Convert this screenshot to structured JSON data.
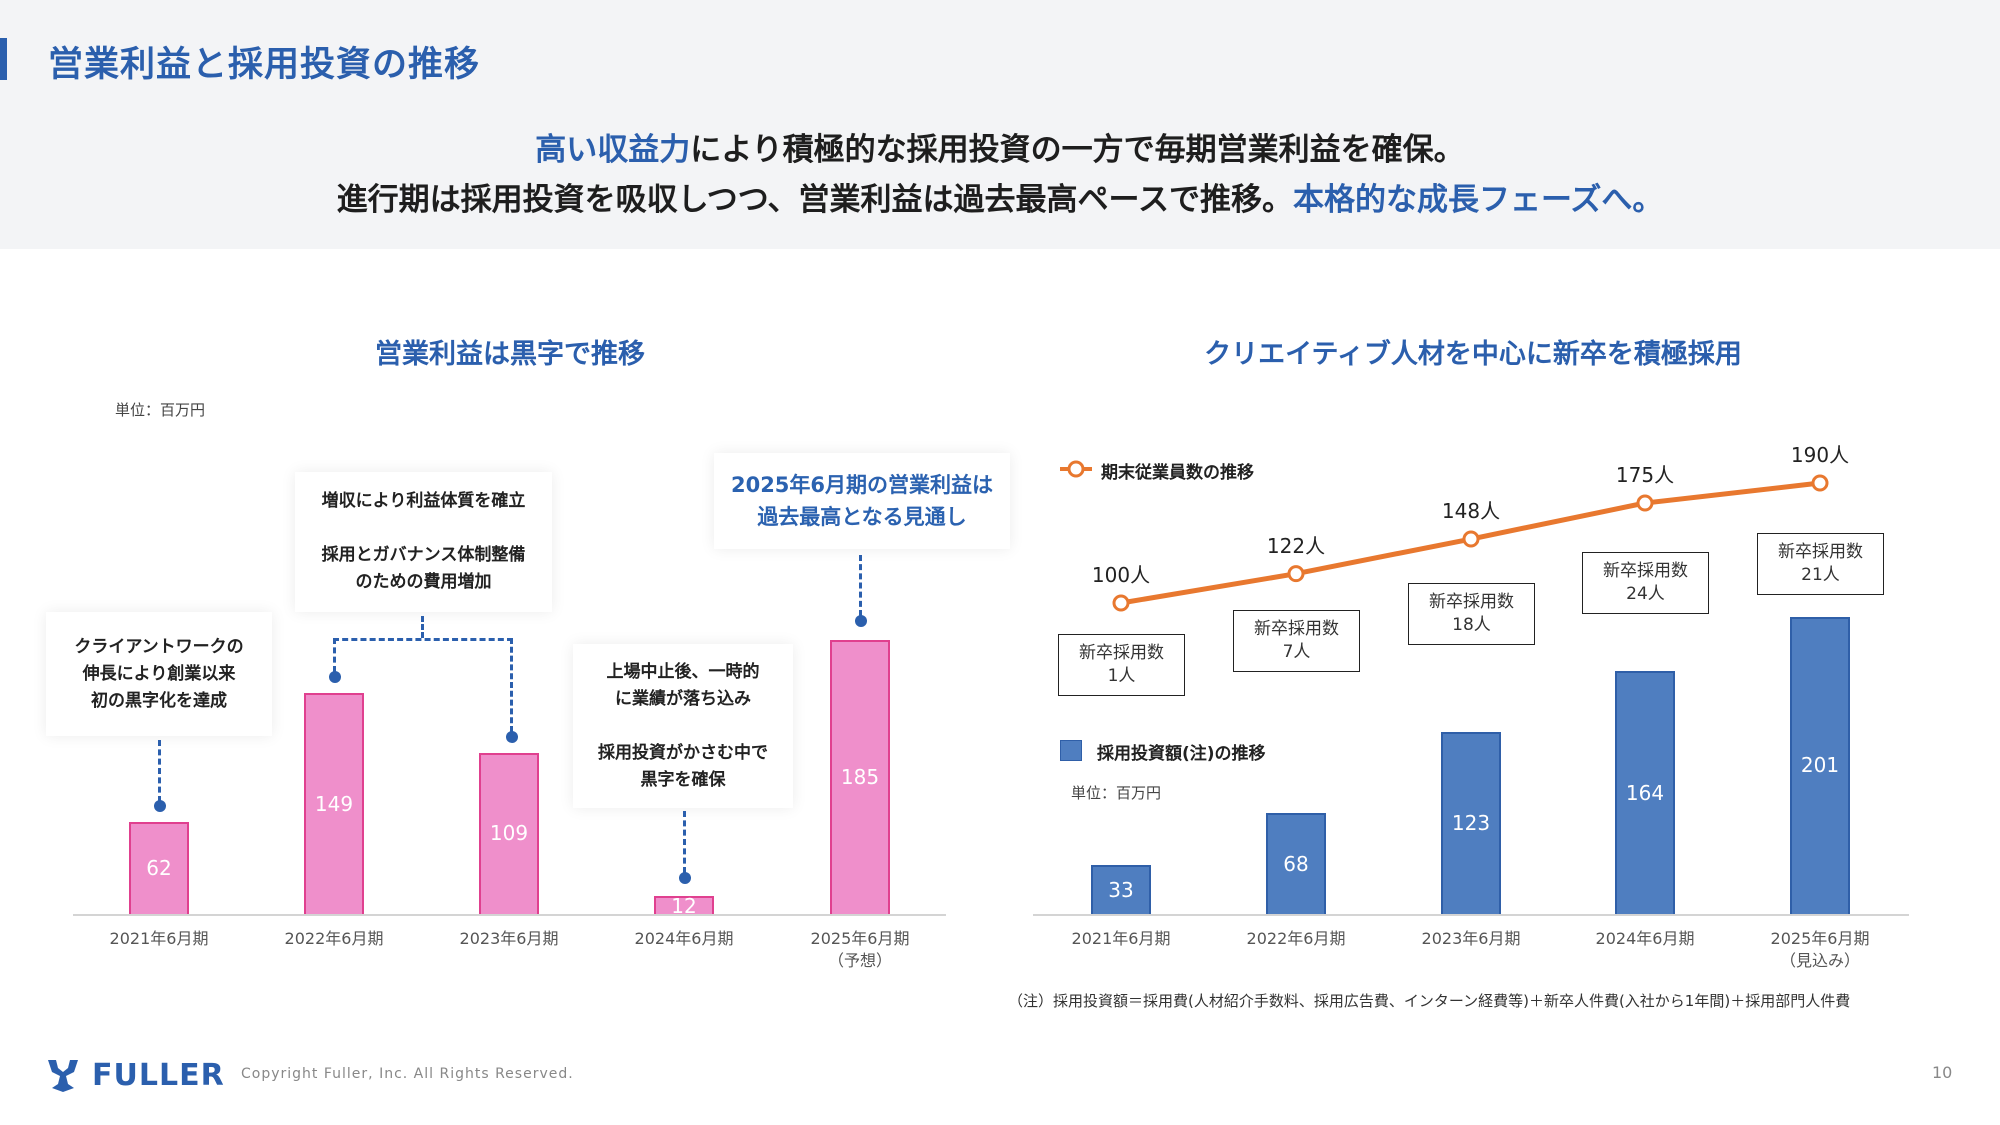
{
  "header": {
    "title": "営業利益と採用投資の推移",
    "line1": {
      "highlight": "高い収益力",
      "rest": "により積極的な採用投資の一方で毎期営業利益を確保。"
    },
    "line2": {
      "rest": "進行期は採用投資を吸収しつつ、営業利益は過去最高ペースで推移。",
      "highlight": "本格的な成長フェーズへ。"
    }
  },
  "colors": {
    "accent": "#2b5fad",
    "pink_bar": "#ef8fcb",
    "blue_bar": "#4f7ec0",
    "orange_line": "#e8782f"
  },
  "chart_data": [
    {
      "type": "bar",
      "title": "営業利益は黒字で推移",
      "unit": "単位：百万円",
      "categories": [
        "2021年6月期",
        "2022年6月期",
        "2023年6月期",
        "2024年6月期",
        "2025年6月期"
      ],
      "category_notes": [
        "",
        "",
        "",
        "",
        "（予想）"
      ],
      "values": [
        62,
        149,
        109,
        12,
        185
      ],
      "callouts": [
        {
          "lines": [
            "クライアントワークの",
            "伸長により創業以来",
            "初の黒字化を達成"
          ]
        },
        {
          "lines": [
            "増収により利益体質を確立",
            "",
            "採用とガバナンス体制整備",
            "のための費用増加"
          ]
        },
        {
          "lines": [
            "上場中止後、一時的",
            "に業績が落ち込み",
            "",
            "採用投資がかさむ中で",
            "黒字を確保"
          ]
        },
        {
          "lines": [
            "2025年6月期の営業利益は",
            "過去最高となる見通し"
          ]
        }
      ]
    },
    {
      "type": "bar+line",
      "title": "クリエイティブ人材を中心に新卒を積極採用",
      "categories": [
        "2021年6月期",
        "2022年6月期",
        "2023年6月期",
        "2024年6月期",
        "2025年6月期"
      ],
      "category_notes": [
        "",
        "",
        "",
        "",
        "（見込み）"
      ],
      "line_series": {
        "name": "期末従業員数の推移",
        "values": [
          100,
          122,
          148,
          175,
          190
        ],
        "labels": [
          "100人",
          "122人",
          "148人",
          "175人",
          "190人"
        ]
      },
      "bar_series": {
        "name": "採用投資額(注)の推移",
        "unit": "単位：百万円",
        "values": [
          33,
          68,
          123,
          164,
          201
        ]
      },
      "new_grad_hires": {
        "label": "新卒採用数",
        "values": [
          "1人",
          "7人",
          "18人",
          "24人",
          "21人"
        ]
      },
      "footnote": "（注）採用投資額＝採用費(人材紹介手数料、採用広告費、インターン経費等)＋新卒人件費(入社から1年間)＋採用部門人件費"
    }
  ],
  "footer": {
    "logo": "FULLER",
    "copyright": "Copyright Fuller, Inc. All Rights Reserved.",
    "page": "10"
  }
}
